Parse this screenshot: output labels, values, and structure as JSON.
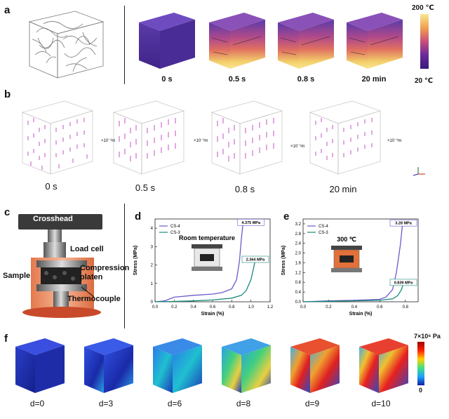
{
  "panel_labels": {
    "a": "a",
    "b": "b",
    "c": "c",
    "d": "d",
    "e": "e",
    "f": "f"
  },
  "panel_a": {
    "times": [
      "0 s",
      "0.5 s",
      "0.8 s",
      "20 min"
    ],
    "colorbar_max": "200 ℃",
    "colorbar_min": "20 ℃",
    "colors": {
      "low": "#4b2a9b",
      "mid": "#c8507a",
      "high": "#f7e27a"
    }
  },
  "panel_b": {
    "times": [
      "0 s",
      "0.5 s",
      "0.8 s",
      "20 min"
    ],
    "axis_unit": "×10⁻³m",
    "arrow_color": "#c040c0"
  },
  "panel_c": {
    "labels": {
      "crosshead": "Crosshead",
      "load_cell": "Load cell",
      "compression": "Compression",
      "platen": "platen",
      "sample": "Sample",
      "thermocouple": "Thermocouple"
    }
  },
  "panel_f": {
    "densities": [
      "d=0",
      "d=3",
      "d=6",
      "d=8",
      "d=9",
      "d=10"
    ],
    "colorbar_max": "7×10⁶ Pa",
    "colorbar_min": "0"
  },
  "chart_data": [
    {
      "type": "line",
      "panel": "d",
      "inset_label": "Room temperature",
      "xlabel": "Strain (%)",
      "ylabel": "Stress (MPa)",
      "xlim": [
        0,
        1.2
      ],
      "ylim": [
        0,
        4.5
      ],
      "xticks": [
        "0.0",
        "0.2",
        "0.4",
        "0.6",
        "0.8",
        "1.0",
        "1.2"
      ],
      "yticks": [
        "0",
        "1",
        "2",
        "3",
        "4"
      ],
      "series": [
        {
          "name": "CS-4",
          "color": "#6a5acd",
          "x": [
            0,
            0.1,
            0.2,
            0.4,
            0.6,
            0.7,
            0.8,
            0.85,
            0.88,
            0.9,
            0.92
          ],
          "y": [
            0,
            0.05,
            0.25,
            0.35,
            0.42,
            0.5,
            0.7,
            1.2,
            2.2,
            3.4,
            4.375
          ],
          "peak_label": "4.375 MPa"
        },
        {
          "name": "CS-3",
          "color": "#1a8a7a",
          "x": [
            0,
            0.2,
            0.4,
            0.6,
            0.8,
            0.9,
            0.95,
            1.0,
            1.03,
            1.05
          ],
          "y": [
            0,
            0.02,
            0.05,
            0.1,
            0.2,
            0.35,
            0.6,
            1.2,
            1.9,
            2.364
          ],
          "peak_label": "2.364 MPa"
        }
      ]
    },
    {
      "type": "line",
      "panel": "e",
      "inset_label": "300 ℃",
      "xlabel": "Strain (%)",
      "ylabel": "Stress (MPa)",
      "xlim": [
        0,
        0.9
      ],
      "ylim": [
        0,
        3.4
      ],
      "xticks": [
        "0.0",
        "0.2",
        "0.4",
        "0.6",
        "0.8"
      ],
      "yticks": [
        "0.0",
        "0.4",
        "0.8",
        "1.2",
        "1.6",
        "2.0",
        "2.4",
        "2.8",
        "3.2"
      ],
      "series": [
        {
          "name": "CS-4",
          "color": "#6a5acd",
          "x": [
            0,
            0.2,
            0.4,
            0.6,
            0.65,
            0.7,
            0.73,
            0.76,
            0.78
          ],
          "y": [
            0,
            0.04,
            0.06,
            0.1,
            0.2,
            0.5,
            1.2,
            2.3,
            3.28
          ],
          "peak_label": "3.28 MPa"
        },
        {
          "name": "CS-3",
          "color": "#1a8a7a",
          "x": [
            0,
            0.2,
            0.4,
            0.6,
            0.7,
            0.74,
            0.77,
            0.79
          ],
          "y": [
            0,
            0.02,
            0.04,
            0.06,
            0.12,
            0.25,
            0.5,
            0.839
          ],
          "peak_label": "0.839 MPa"
        }
      ]
    }
  ]
}
